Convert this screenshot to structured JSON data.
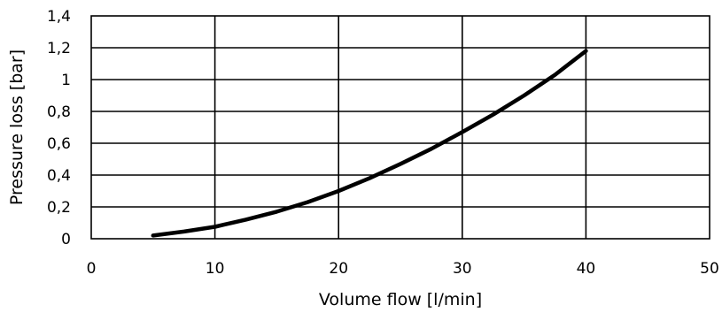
{
  "chart_data": {
    "type": "line",
    "title": "",
    "xlabel": "Volume flow [l/min]",
    "ylabel": "Pressure loss [bar]",
    "xlim": [
      0,
      50
    ],
    "ylim": [
      0,
      1.4
    ],
    "xticks": [
      0,
      10,
      20,
      30,
      40,
      50
    ],
    "yticks": [
      0,
      0.2,
      0.4,
      0.6,
      0.8,
      1,
      1.2,
      1.4
    ],
    "xtick_labels": [
      "0",
      "10",
      "20",
      "30",
      "40",
      "50"
    ],
    "ytick_labels": [
      "0",
      "0,2",
      "0,4",
      "0,6",
      "0,8",
      "1",
      "1,2",
      "1,4"
    ],
    "grid": true,
    "legend": "none",
    "series": [
      {
        "color": "#000000",
        "x": [
          5,
          7.5,
          10,
          12.5,
          15,
          17.5,
          20,
          22.5,
          25,
          27.5,
          30,
          32.5,
          35,
          37.5,
          40
        ],
        "y": [
          0.02,
          0.045,
          0.075,
          0.12,
          0.17,
          0.23,
          0.3,
          0.38,
          0.47,
          0.565,
          0.67,
          0.78,
          0.9,
          1.03,
          1.18
        ]
      }
    ]
  }
}
